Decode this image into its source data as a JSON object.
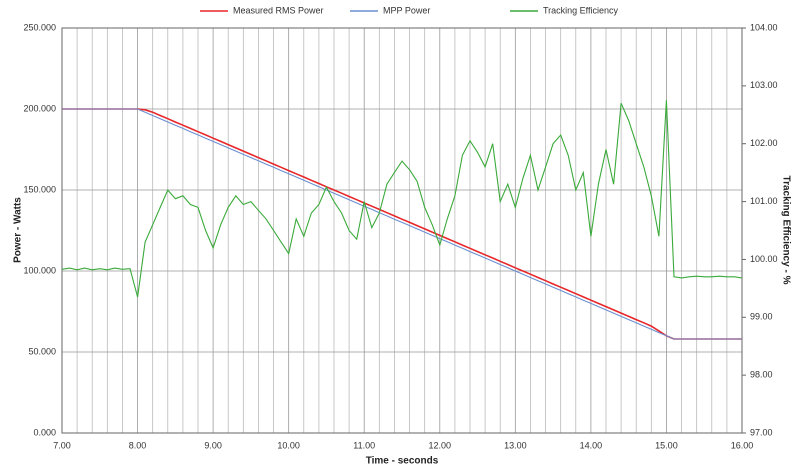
{
  "chart_data": {
    "type": "line",
    "x_label": "Time - seconds",
    "y_label": "Power - Watts",
    "y2_label": "Tracking Efficiency - %",
    "x": [
      7,
      7.1,
      7.2,
      7.3,
      7.4,
      7.5,
      7.6,
      7.7,
      7.8,
      7.9,
      8,
      8.1,
      8.2,
      8.3,
      8.4,
      8.5,
      8.6,
      8.7,
      8.8,
      8.9,
      9,
      9.1,
      9.2,
      9.3,
      9.4,
      9.5,
      9.6,
      9.7,
      9.8,
      9.9,
      10,
      10.1,
      10.2,
      10.3,
      10.4,
      10.5,
      10.6,
      10.7,
      10.8,
      10.9,
      11,
      11.1,
      11.2,
      11.3,
      11.4,
      11.5,
      11.6,
      11.7,
      11.8,
      11.9,
      12,
      12.1,
      12.2,
      12.3,
      12.4,
      12.5,
      12.6,
      12.7,
      12.8,
      12.9,
      13,
      13.1,
      13.2,
      13.3,
      13.4,
      13.5,
      13.6,
      13.7,
      13.8,
      13.9,
      14,
      14.1,
      14.2,
      14.3,
      14.4,
      14.5,
      14.6,
      14.7,
      14.8,
      14.9,
      15,
      15.1,
      15.2,
      15.3,
      15.4,
      15.5,
      15.6,
      15.7,
      15.8,
      15.9,
      16
    ],
    "series": [
      {
        "name": "Measured RMS Power",
        "color": "#e8262a",
        "values": [
          200,
          200,
          200,
          200,
          200,
          200,
          200,
          200,
          200,
          200,
          200,
          199.5,
          198,
          196,
          194,
          192,
          190,
          188,
          186,
          184,
          182,
          180,
          178,
          176,
          174,
          172,
          170,
          168,
          166,
          164,
          162,
          160,
          158,
          156,
          154,
          152,
          150,
          148,
          146,
          144,
          142,
          140,
          138,
          136,
          134,
          132,
          130,
          128,
          126,
          124,
          122,
          120,
          118,
          116,
          114,
          112,
          110,
          108,
          106,
          104,
          102,
          100,
          98,
          96,
          94,
          92,
          90,
          88,
          86,
          84,
          82,
          80,
          78,
          76,
          74,
          72,
          70,
          68,
          66,
          63,
          60,
          58,
          58,
          58,
          58,
          58,
          58,
          58,
          58,
          58,
          58
        ]
      },
      {
        "name": "MPP Power",
        "color": "#6a8fd0",
        "values": [
          200,
          200,
          200,
          200,
          200,
          200,
          200,
          200,
          200,
          200,
          200,
          198,
          196,
          194,
          192,
          190,
          188,
          186,
          184,
          182,
          180,
          178,
          176,
          174,
          172,
          170,
          168,
          166,
          164,
          162,
          160,
          158,
          156,
          154,
          152,
          150,
          148,
          146,
          144,
          142,
          140,
          138,
          136,
          134,
          132,
          130,
          128,
          126,
          124,
          122,
          120,
          118,
          116,
          114,
          112,
          110,
          108,
          106,
          104,
          102,
          100,
          98,
          96,
          94,
          92,
          90,
          88,
          86,
          84,
          82,
          80,
          78,
          76,
          74,
          72,
          70,
          68,
          66,
          64,
          62,
          60,
          58,
          58,
          58,
          58,
          58,
          58,
          58,
          58,
          58,
          58
        ]
      },
      {
        "name": "Tracking Efficiency",
        "color": "#3aaa3a",
        "axis": "y2",
        "values": [
          99.83,
          99.85,
          99.82,
          99.85,
          99.82,
          99.84,
          99.82,
          99.85,
          99.83,
          99.84,
          99.35,
          100.3,
          100.6,
          100.9,
          101.2,
          101.05,
          101.1,
          100.95,
          100.9,
          100.5,
          100.2,
          100.6,
          100.9,
          101.1,
          100.95,
          101.0,
          100.85,
          100.7,
          100.5,
          100.3,
          100.1,
          100.7,
          100.4,
          100.8,
          100.95,
          101.25,
          101.0,
          100.8,
          100.5,
          100.35,
          101.0,
          100.55,
          100.8,
          101.3,
          101.5,
          101.7,
          101.55,
          101.35,
          100.9,
          100.6,
          100.25,
          100.7,
          101.1,
          101.8,
          102.05,
          101.85,
          101.6,
          102.0,
          101.0,
          101.3,
          100.9,
          101.4,
          101.8,
          101.2,
          101.6,
          102.0,
          102.15,
          101.8,
          101.2,
          101.5,
          100.4,
          101.3,
          101.9,
          101.3,
          102.7,
          102.4,
          102.0,
          101.6,
          101.1,
          100.4,
          102.75,
          99.7,
          99.68,
          99.7,
          99.71,
          99.7,
          99.7,
          99.71,
          99.7,
          99.7,
          99.68
        ]
      }
    ],
    "xlim": [
      7,
      16
    ],
    "xticks": [
      {
        "value": 7,
        "label": "7.00"
      },
      {
        "value": 8,
        "label": "8.00"
      },
      {
        "value": 9,
        "label": "9.00"
      },
      {
        "value": 10,
        "label": "10.00"
      },
      {
        "value": 11,
        "label": "11.00"
      },
      {
        "value": 12,
        "label": "12.00"
      },
      {
        "value": 13,
        "label": "13.00"
      },
      {
        "value": 14,
        "label": "14.00"
      },
      {
        "value": 15,
        "label": "15.00"
      },
      {
        "value": 16,
        "label": "16.00"
      }
    ],
    "x_grid": [
      7.2,
      7.4,
      7.6,
      7.8,
      8.2,
      8.4,
      8.6,
      8.8,
      9.2,
      9.4,
      9.6,
      9.8,
      10.2,
      10.4,
      10.6,
      10.8,
      11.2,
      11.4,
      11.6,
      11.8,
      12.2,
      12.4,
      12.6,
      12.8,
      13.2,
      13.4,
      13.6,
      13.8,
      14.2,
      14.4,
      14.6,
      14.8,
      15.2,
      15.4,
      15.6,
      15.8
    ],
    "ylim": [
      0,
      250
    ],
    "yticks": [
      {
        "value": 0,
        "label": "0.000"
      },
      {
        "value": 50,
        "label": "50.000"
      },
      {
        "value": 100,
        "label": "100.000"
      },
      {
        "value": 150,
        "label": "150.000"
      },
      {
        "value": 200,
        "label": "200.000"
      },
      {
        "value": 250,
        "label": "250.000"
      }
    ],
    "y2lim": [
      97,
      104
    ],
    "y2ticks": [
      {
        "value": 97,
        "label": "97.00"
      },
      {
        "value": 98,
        "label": "98.00"
      },
      {
        "value": 99,
        "label": "99.00"
      },
      {
        "value": 100,
        "label": "100.00"
      },
      {
        "value": 101,
        "label": "101.00"
      },
      {
        "value": 102,
        "label": "102.00"
      },
      {
        "value": 103,
        "label": "103.00"
      },
      {
        "value": 104,
        "label": "104.00"
      }
    ],
    "grid": true,
    "legend": "top"
  }
}
